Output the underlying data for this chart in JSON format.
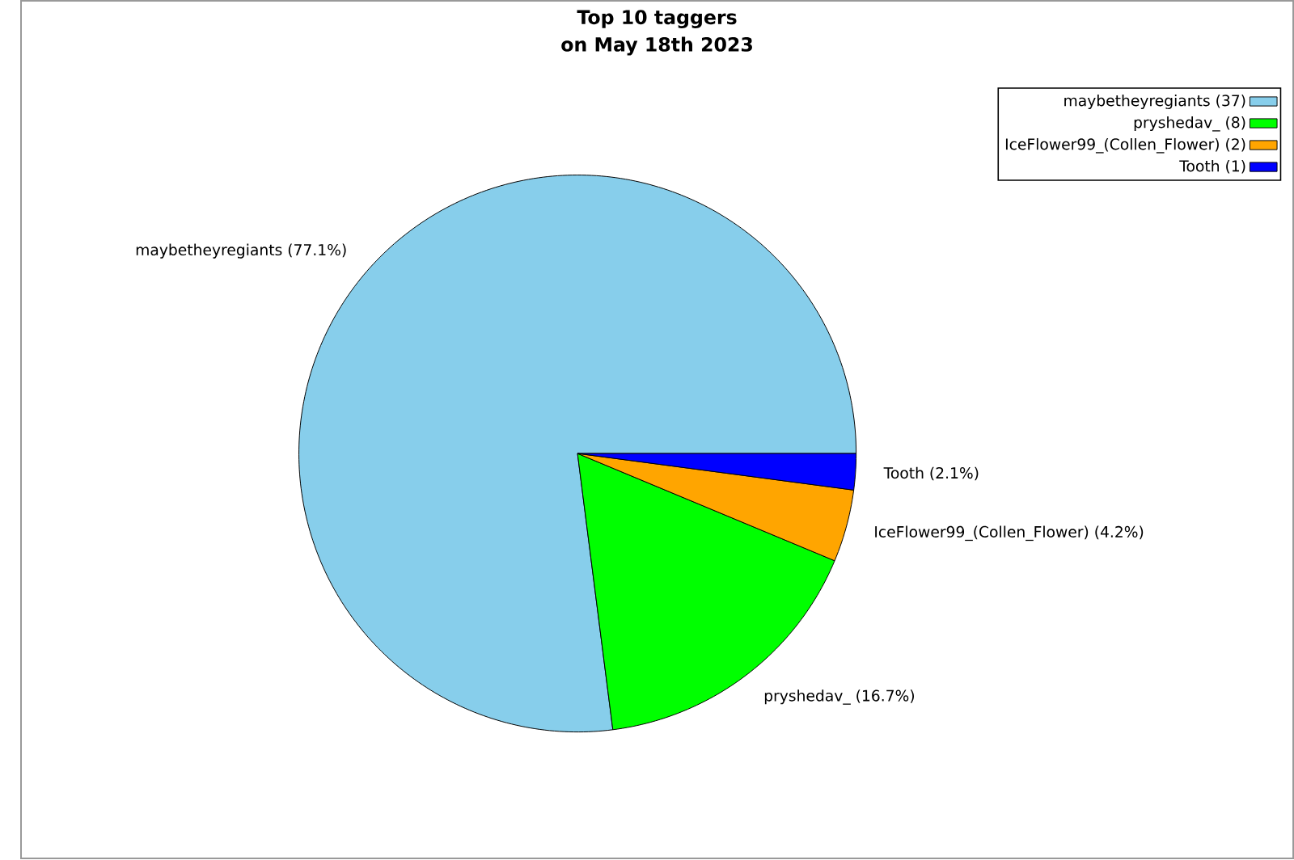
{
  "chart_data": {
    "type": "pie",
    "title": "Top 10 taggers",
    "subtitle": "on May 18th 2023",
    "categories": [
      "maybetheyregiants (37)",
      "pryshedav_ (8)",
      "IceFlower99_(Collen_Flower) (2)",
      "Tooth (1)"
    ],
    "values": [
      77.1,
      16.7,
      4.2,
      2.1
    ],
    "value_labels": [
      "maybetheyregiants (77.1%)",
      "pryshedav_ (16.7%)",
      "IceFlower99_(Collen_Flower) (4.2%)",
      "Tooth (2.1%)"
    ],
    "colors": [
      "#87ceeb",
      "#00ff00",
      "#ffa500",
      "#0000ff"
    ],
    "legend": "top right"
  }
}
